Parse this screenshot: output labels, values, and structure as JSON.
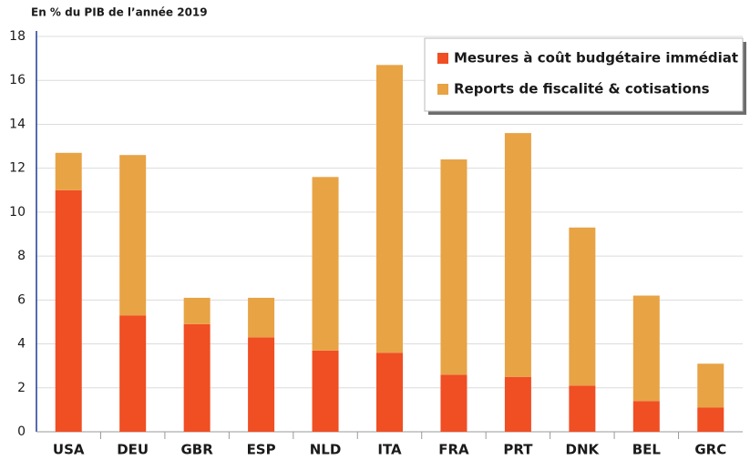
{
  "chart_data": {
    "type": "stacked_bar",
    "title": "En % du PIB de l’année 2019",
    "categories": [
      "USA",
      "DEU",
      "GBR",
      "ESP",
      "NLD",
      "ITA",
      "FRA",
      "PRT",
      "DNK",
      "BEL",
      "GRC"
    ],
    "series": [
      {
        "name": "Mesures à coût budgétaire immédiat",
        "color": "#f04e23",
        "values": [
          11.0,
          5.3,
          4.9,
          4.3,
          3.7,
          3.6,
          2.6,
          2.5,
          2.1,
          1.4,
          1.1
        ]
      },
      {
        "name": "Reports de fiscalité & cotisations",
        "color": "#e8a345",
        "values": [
          1.7,
          7.3,
          1.2,
          1.8,
          7.9,
          13.1,
          9.8,
          11.1,
          7.2,
          4.8,
          2.0
        ]
      }
    ],
    "ylim": [
      0,
      18
    ],
    "yticks": [
      0,
      2,
      4,
      6,
      8,
      10,
      12,
      14,
      16,
      18
    ],
    "grid": true,
    "legend": "top-right"
  }
}
